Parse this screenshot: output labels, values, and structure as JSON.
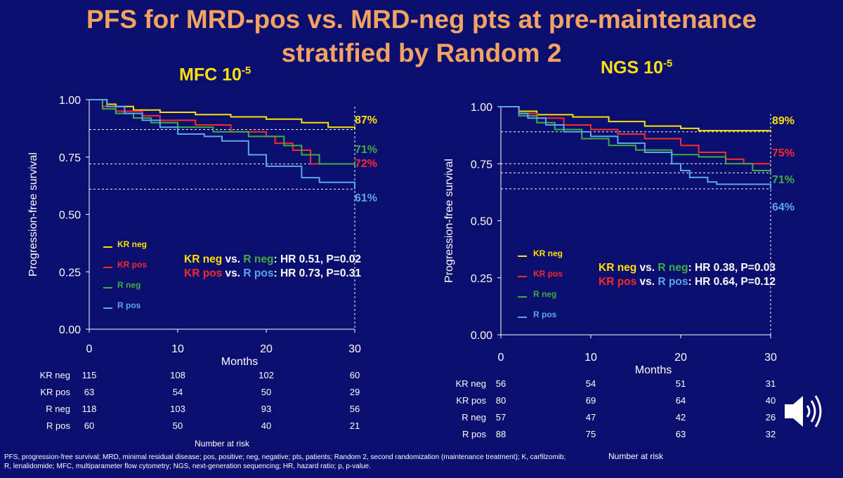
{
  "slide": {
    "title_line1": "PFS for MRD-pos vs. MRD-neg pts at pre-maintenance",
    "title_line2": "stratified by Random 2",
    "footnote": "PFS, progression-free survival; MRD, minimal residual disease; pos, positive; neg, negative; pts, patients; Random 2, second randomization (maintenance treatment); K, carfilzomib; R, lenalidomide; MFC, multiparameter flow cytometry; NGS, next-generation sequencing; HR, hazard ratio; p, p-value."
  },
  "colors": {
    "background": "#0a0e6e",
    "title": "#f4a261",
    "KR_neg": "#ffe100",
    "KR_pos": "#ff2a2a",
    "R_neg": "#3fae3f",
    "R_pos": "#5aa9e6"
  },
  "chart_data": [
    {
      "id": "mfc",
      "type": "line",
      "panel_title": "MFC 10",
      "panel_title_sup": "-5",
      "title": "MFC 10-5",
      "xlabel": "Months",
      "ylabel": "Progression-free survival",
      "xlim": [
        0,
        30
      ],
      "ylim": [
        0,
        1
      ],
      "xticks": [
        "0",
        "10",
        "20",
        "30"
      ],
      "yticks": [
        "0.00",
        "0.25",
        "0.50",
        "0.75",
        "1.00"
      ],
      "series": [
        {
          "key": "KR_neg",
          "name": "KR neg",
          "x": [
            0,
            2,
            3,
            5,
            8,
            12,
            16,
            20,
            24,
            27,
            30
          ],
          "y": [
            1,
            0.98,
            0.97,
            0.955,
            0.945,
            0.935,
            0.925,
            0.915,
            0.9,
            0.88,
            0.87
          ]
        },
        {
          "key": "KR_pos",
          "name": "KR pos",
          "x": [
            0,
            1.5,
            3,
            6,
            8,
            12,
            16,
            20,
            21,
            23,
            25,
            30
          ],
          "y": [
            1,
            0.97,
            0.95,
            0.93,
            0.91,
            0.89,
            0.86,
            0.84,
            0.81,
            0.78,
            0.72,
            0.72
          ]
        },
        {
          "key": "R_neg",
          "name": "R neg",
          "x": [
            0,
            1.5,
            3,
            5,
            7,
            10,
            14,
            18,
            22,
            24,
            26,
            30
          ],
          "y": [
            1,
            0.96,
            0.94,
            0.92,
            0.9,
            0.88,
            0.86,
            0.84,
            0.8,
            0.76,
            0.72,
            0.71
          ]
        },
        {
          "key": "R_pos",
          "name": "R pos",
          "x": [
            0,
            2,
            4,
            6,
            8,
            10,
            13,
            15,
            18,
            20,
            24,
            26,
            29,
            30
          ],
          "y": [
            1,
            0.97,
            0.94,
            0.91,
            0.88,
            0.85,
            0.84,
            0.82,
            0.76,
            0.71,
            0.66,
            0.64,
            0.64,
            0.61
          ]
        }
      ],
      "end_labels": [
        {
          "key": "KR_neg",
          "text": "87%",
          "value": 0.87
        },
        {
          "key": "R_neg",
          "text": "71%",
          "value": 0.71
        },
        {
          "key": "KR_pos",
          "text": "72%",
          "value": 0.72
        },
        {
          "key": "R_pos",
          "text": "61%",
          "value": 0.61
        }
      ],
      "dashed_levels": [
        0.87,
        0.72,
        0.61
      ],
      "legend": [
        {
          "key": "KR_neg",
          "label": "KR neg"
        },
        {
          "key": "KR_pos",
          "label": "KR pos"
        },
        {
          "key": "R_neg",
          "label": "R neg"
        },
        {
          "key": "R_pos",
          "label": "R pos"
        }
      ],
      "hr": [
        {
          "a": "KR neg",
          "a_key": "KR_neg",
          "vs": "vs.",
          "b": "R neg",
          "b_key": "R_neg",
          "stat": ": HR 0.51, P=0.02"
        },
        {
          "a": "KR pos",
          "a_key": "KR_pos",
          "vs": "vs.",
          "b": "R pos",
          "b_key": "R_pos",
          "stat": ": HR 0.73, P=0.31"
        }
      ],
      "risk_table": {
        "caption": "Number at risk",
        "rows": [
          {
            "label": "KR neg",
            "values": [
              "115",
              "108",
              "102",
              "60"
            ]
          },
          {
            "label": "KR pos",
            "values": [
              "63",
              "54",
              "50",
              "29"
            ]
          },
          {
            "label": "R neg",
            "values": [
              "118",
              "103",
              "93",
              "56"
            ]
          },
          {
            "label": "R pos",
            "values": [
              "60",
              "50",
              "40",
              "21"
            ]
          }
        ]
      }
    },
    {
      "id": "ngs",
      "type": "line",
      "panel_title": "NGS 10",
      "panel_title_sup": "-5",
      "title": "NGS 10-5",
      "xlabel": "Months",
      "ylabel": "Progression-free survival",
      "xlim": [
        0,
        30
      ],
      "ylim": [
        0,
        1
      ],
      "xticks": [
        "0",
        "10",
        "20",
        "30"
      ],
      "yticks": [
        "0.00",
        "0.25",
        "0.50",
        "0.75",
        "1.00"
      ],
      "series": [
        {
          "key": "KR_neg",
          "name": "KR neg",
          "x": [
            0,
            2,
            4,
            8,
            12,
            16,
            20,
            22,
            30
          ],
          "y": [
            1,
            0.98,
            0.965,
            0.955,
            0.935,
            0.915,
            0.905,
            0.895,
            0.89
          ]
        },
        {
          "key": "KR_pos",
          "name": "KR pos",
          "x": [
            0,
            2,
            4,
            7,
            10,
            13,
            16,
            20,
            22,
            25,
            27,
            30
          ],
          "y": [
            1,
            0.97,
            0.95,
            0.92,
            0.9,
            0.88,
            0.86,
            0.83,
            0.8,
            0.77,
            0.75,
            0.75
          ]
        },
        {
          "key": "R_neg",
          "name": "R neg",
          "x": [
            0,
            2,
            4,
            6,
            9,
            12,
            15,
            19,
            22,
            25,
            28,
            30
          ],
          "y": [
            1,
            0.96,
            0.93,
            0.9,
            0.86,
            0.83,
            0.81,
            0.79,
            0.78,
            0.75,
            0.72,
            0.71
          ]
        },
        {
          "key": "R_pos",
          "name": "R pos",
          "x": [
            0,
            2,
            3,
            5,
            7,
            10,
            13,
            16,
            19,
            20,
            21,
            23,
            24,
            30
          ],
          "y": [
            1,
            0.97,
            0.95,
            0.92,
            0.89,
            0.87,
            0.84,
            0.8,
            0.75,
            0.72,
            0.69,
            0.67,
            0.66,
            0.64
          ]
        }
      ],
      "end_labels": [
        {
          "key": "KR_neg",
          "text": "89%",
          "value": 0.89
        },
        {
          "key": "KR_pos",
          "text": "75%",
          "value": 0.75
        },
        {
          "key": "R_neg",
          "text": "71%",
          "value": 0.71
        },
        {
          "key": "R_pos",
          "text": "64%",
          "value": 0.64
        }
      ],
      "dashed_levels": [
        0.89,
        0.75,
        0.71,
        0.64
      ],
      "legend": [
        {
          "key": "KR_neg",
          "label": "KR neg"
        },
        {
          "key": "KR_pos",
          "label": "KR pos"
        },
        {
          "key": "R_neg",
          "label": "R neg"
        },
        {
          "key": "R_pos",
          "label": "R pos"
        }
      ],
      "hr": [
        {
          "a": "KR neg",
          "a_key": "KR_neg",
          "vs": "vs.",
          "b": "R neg",
          "b_key": "R_neg",
          "stat": ": HR 0.38, P=0.03"
        },
        {
          "a": "KR pos",
          "a_key": "KR_pos",
          "vs": "vs.",
          "b": "R pos",
          "b_key": "R_pos",
          "stat": ": HR 0.64, P=0.12"
        }
      ],
      "risk_table": {
        "caption": "Number at risk",
        "rows": [
          {
            "label": "KR neg",
            "values": [
              "56",
              "54",
              "51",
              "31"
            ]
          },
          {
            "label": "KR pos",
            "values": [
              "80",
              "69",
              "64",
              "40"
            ]
          },
          {
            "label": "R neg",
            "values": [
              "57",
              "47",
              "42",
              "26"
            ]
          },
          {
            "label": "R pos",
            "values": [
              "88",
              "75",
              "63",
              "32"
            ]
          }
        ]
      }
    }
  ]
}
